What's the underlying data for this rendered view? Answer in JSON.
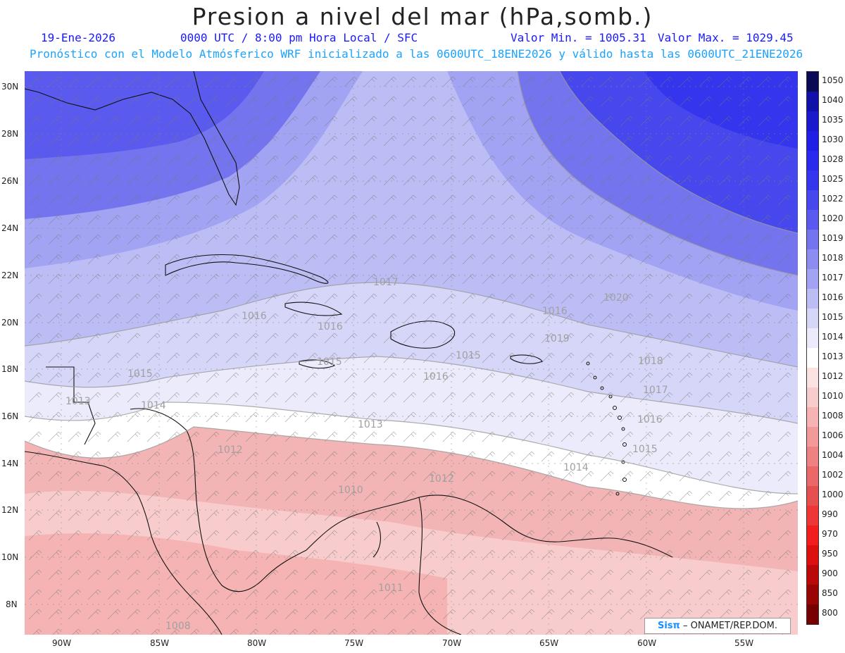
{
  "header": {
    "title": "Presion a nivel del mar (hPa,somb.)",
    "date": "19-Ene-2026",
    "time": "0000 UTC / 8:00 pm Hora Local / SFC",
    "min_label": "Valor Min. = 1005.31",
    "max_label": "Valor Max. = 1029.45",
    "model_line": "Pronóstico con el Modelo Atmósferico WRF inicializado a las 0600UTC_18ENE2026 y válido hasta las  0600UTC_21ENE2026"
  },
  "axes": {
    "lat_labels": [
      "30N",
      "28N",
      "26N",
      "24N",
      "22N",
      "20N",
      "18N",
      "16N",
      "14N",
      "12N",
      "10N",
      "8N"
    ],
    "lon_labels": [
      "90W",
      "85W",
      "80W",
      "75W",
      "70W",
      "65W",
      "60W",
      "55W"
    ]
  },
  "colorbar": {
    "levels": [
      "1050",
      "1040",
      "1035",
      "1030",
      "1028",
      "1025",
      "1022",
      "1020",
      "1019",
      "1018",
      "1017",
      "1016",
      "1015",
      "1014",
      "1013",
      "1012",
      "1010",
      "1008",
      "1006",
      "1004",
      "1002",
      "1000",
      "990",
      "970",
      "950",
      "900",
      "850",
      "800"
    ],
    "colors": [
      "#0a0a55",
      "#1111aa",
      "#1a1acc",
      "#1f1fe6",
      "#2a2aee",
      "#3535ee",
      "#4747ee",
      "#5a5aee",
      "#7474ef",
      "#8c8cf1",
      "#a3a3f3",
      "#bdbdf6",
      "#d6d6f9",
      "#ebebfb",
      "#ffffff",
      "#fbe3e3",
      "#f8cccc",
      "#f5b3b3",
      "#f29a9a",
      "#ee8181",
      "#ea6868",
      "#e54f4f",
      "#ee3636",
      "#f21d1d",
      "#dd1010",
      "#bb0808",
      "#990404",
      "#770000"
    ]
  },
  "contour_labels": [
    "1017",
    "1016",
    "1016",
    "1015",
    "1015",
    "1015",
    "1016",
    "1016",
    "1018",
    "1017",
    "1016",
    "1015",
    "1014",
    "1013",
    "1014",
    "1020",
    "1019",
    "1012",
    "1012",
    "1010",
    "1011",
    "1008",
    "1013"
  ],
  "credit": {
    "brand": "Sisπ",
    "text": "– ONAMET/REP.DOM."
  },
  "colors": {
    "high": "#3a3aee",
    "low": "#f4b6b6",
    "neutral": "#ffffff",
    "coast": "#111111",
    "contour": "#999999"
  }
}
